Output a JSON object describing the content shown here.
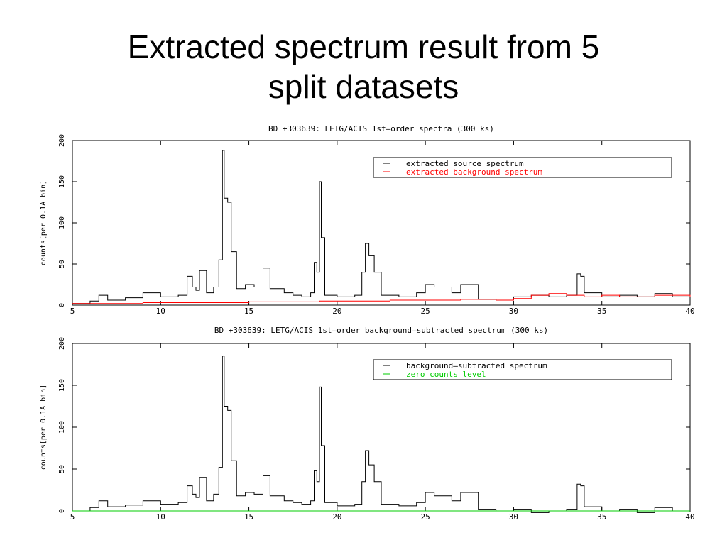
{
  "slide": {
    "title_line1": "Extracted spectrum result from 5",
    "title_line2": "split datasets"
  },
  "chart_data": [
    {
      "type": "line",
      "title": "BD +303639: LETG/ACIS 1st—order spectra (300 ks)",
      "xlabel": "",
      "ylabel": "counts[per 0.1A bin]",
      "xlim": [
        5,
        40
      ],
      "ylim": [
        0,
        200
      ],
      "x_ticks": [
        5,
        10,
        15,
        20,
        25,
        30,
        35,
        40
      ],
      "x_tick_labels": [
        "5",
        "10",
        "15",
        "20",
        "25",
        "30",
        "35",
        "40"
      ],
      "y_ticks": [
        0,
        50,
        100,
        150,
        200
      ],
      "y_tick_labels": [
        "0",
        "50",
        "100",
        "150",
        "200"
      ],
      "grid": false,
      "legend_position": "top-right",
      "series": [
        {
          "name": "extracted source spectrum",
          "color": "#000000",
          "points": [
            [
              5,
              2
            ],
            [
              6,
              5
            ],
            [
              6.5,
              12
            ],
            [
              7,
              6
            ],
            [
              8,
              9
            ],
            [
              9,
              15
            ],
            [
              10,
              10
            ],
            [
              11,
              12
            ],
            [
              11.5,
              35
            ],
            [
              11.8,
              22
            ],
            [
              12,
              18
            ],
            [
              12.2,
              42
            ],
            [
              12.6,
              15
            ],
            [
              13,
              22
            ],
            [
              13.3,
              55
            ],
            [
              13.5,
              188
            ],
            [
              13.6,
              130
            ],
            [
              13.8,
              125
            ],
            [
              14,
              65
            ],
            [
              14.3,
              20
            ],
            [
              14.8,
              25
            ],
            [
              15.3,
              22
            ],
            [
              15.8,
              45
            ],
            [
              16.2,
              20
            ],
            [
              17,
              15
            ],
            [
              17.5,
              12
            ],
            [
              18,
              10
            ],
            [
              18.5,
              15
            ],
            [
              18.7,
              52
            ],
            [
              18.85,
              40
            ],
            [
              19,
              150
            ],
            [
              19.1,
              82
            ],
            [
              19.3,
              12
            ],
            [
              20,
              10
            ],
            [
              21,
              12
            ],
            [
              21.4,
              40
            ],
            [
              21.6,
              75
            ],
            [
              21.8,
              60
            ],
            [
              22.1,
              40
            ],
            [
              22.5,
              12
            ],
            [
              23.5,
              10
            ],
            [
              24.5,
              15
            ],
            [
              25,
              25
            ],
            [
              25.5,
              22
            ],
            [
              26,
              22
            ],
            [
              26.5,
              15
            ],
            [
              27,
              25
            ],
            [
              28,
              7
            ],
            [
              29,
              6
            ],
            [
              30,
              10
            ],
            [
              31,
              12
            ],
            [
              32,
              10
            ],
            [
              33,
              12
            ],
            [
              33.6,
              38
            ],
            [
              33.8,
              35
            ],
            [
              34,
              15
            ],
            [
              35,
              10
            ],
            [
              36,
              12
            ],
            [
              37,
              10
            ],
            [
              38,
              14
            ],
            [
              39,
              10
            ],
            [
              40,
              8
            ]
          ]
        },
        {
          "name": "extracted background spectrum",
          "color": "#ff0000",
          "points": [
            [
              5,
              2
            ],
            [
              7,
              2
            ],
            [
              9,
              3
            ],
            [
              11,
              3
            ],
            [
              13,
              3
            ],
            [
              15,
              4
            ],
            [
              17,
              4
            ],
            [
              19,
              5
            ],
            [
              21,
              5
            ],
            [
              23,
              6
            ],
            [
              25,
              6
            ],
            [
              27,
              7
            ],
            [
              29,
              6
            ],
            [
              30,
              8
            ],
            [
              31,
              12
            ],
            [
              32,
              14
            ],
            [
              33,
              12
            ],
            [
              34,
              10
            ],
            [
              35,
              12
            ],
            [
              36,
              10
            ],
            [
              37,
              10
            ],
            [
              38,
              12
            ],
            [
              39,
              12
            ],
            [
              40,
              10
            ]
          ]
        }
      ]
    },
    {
      "type": "line",
      "title": "BD +303639: LETG/ACIS 1st—order background—subtracted spectrum (300 ks)",
      "xlabel": "",
      "ylabel": "counts[per 0.1A bin]",
      "xlim": [
        5,
        40
      ],
      "ylim": [
        0,
        200
      ],
      "x_ticks": [
        5,
        10,
        15,
        20,
        25,
        30,
        35,
        40
      ],
      "x_tick_labels": [
        "5",
        "10",
        "15",
        "20",
        "25",
        "30",
        "35",
        "40"
      ],
      "y_ticks": [
        0,
        50,
        100,
        150,
        200
      ],
      "y_tick_labels": [
        "0",
        "50",
        "100",
        "150",
        "200"
      ],
      "grid": false,
      "legend_position": "top-right",
      "series": [
        {
          "name": "background—subtracted spectrum",
          "color": "#000000",
          "points": [
            [
              5,
              0
            ],
            [
              6,
              4
            ],
            [
              6.5,
              12
            ],
            [
              7,
              5
            ],
            [
              8,
              7
            ],
            [
              9,
              12
            ],
            [
              10,
              8
            ],
            [
              11,
              10
            ],
            [
              11.5,
              30
            ],
            [
              11.8,
              20
            ],
            [
              12,
              16
            ],
            [
              12.2,
              40
            ],
            [
              12.6,
              12
            ],
            [
              13,
              20
            ],
            [
              13.3,
              52
            ],
            [
              13.5,
              185
            ],
            [
              13.6,
              125
            ],
            [
              13.8,
              120
            ],
            [
              14,
              60
            ],
            [
              14.3,
              18
            ],
            [
              14.8,
              22
            ],
            [
              15.3,
              20
            ],
            [
              15.8,
              42
            ],
            [
              16.2,
              18
            ],
            [
              17,
              12
            ],
            [
              17.5,
              10
            ],
            [
              18,
              8
            ],
            [
              18.5,
              12
            ],
            [
              18.7,
              48
            ],
            [
              18.85,
              35
            ],
            [
              19,
              148
            ],
            [
              19.1,
              78
            ],
            [
              19.3,
              10
            ],
            [
              20,
              6
            ],
            [
              21,
              8
            ],
            [
              21.4,
              35
            ],
            [
              21.6,
              72
            ],
            [
              21.8,
              55
            ],
            [
              22.1,
              35
            ],
            [
              22.5,
              8
            ],
            [
              23.5,
              6
            ],
            [
              24.5,
              10
            ],
            [
              25,
              22
            ],
            [
              25.5,
              18
            ],
            [
              26,
              18
            ],
            [
              26.5,
              12
            ],
            [
              27,
              22
            ],
            [
              28,
              2
            ],
            [
              29,
              0
            ],
            [
              30,
              2
            ],
            [
              31,
              -2
            ],
            [
              32,
              0
            ],
            [
              33,
              2
            ],
            [
              33.6,
              32
            ],
            [
              33.8,
              30
            ],
            [
              34,
              5
            ],
            [
              35,
              0
            ],
            [
              36,
              2
            ],
            [
              37,
              -2
            ],
            [
              38,
              4
            ],
            [
              39,
              0
            ],
            [
              40,
              -1
            ]
          ]
        },
        {
          "name": "zero counts level",
          "color": "#00cc00",
          "points": [
            [
              5,
              0
            ],
            [
              40,
              0
            ]
          ]
        }
      ]
    }
  ]
}
